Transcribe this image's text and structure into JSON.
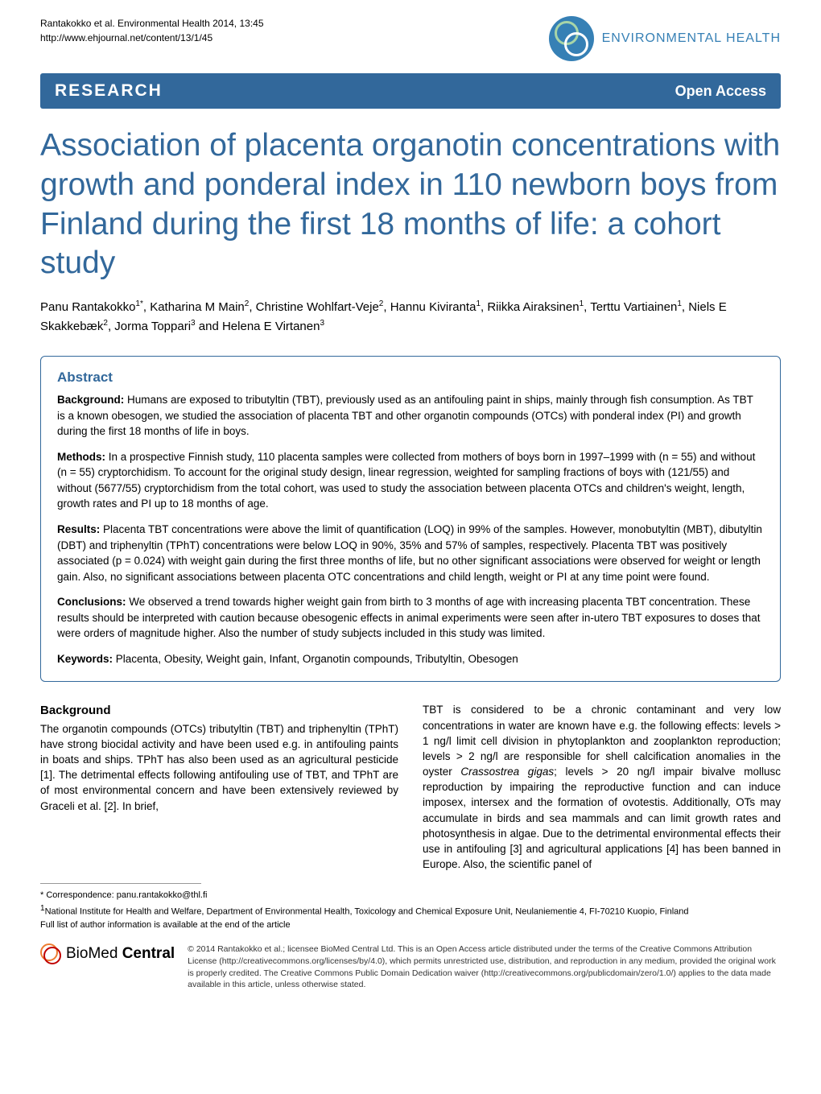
{
  "header": {
    "citation_line1": "Rantakokko et al. Environmental Health 2014, 13:45",
    "citation_line2": "http://www.ehjournal.net/content/13/1/45",
    "journal_name": "ENVIRONMENTAL HEALTH"
  },
  "bar": {
    "research": "RESEARCH",
    "open_access": "Open Access"
  },
  "title": "Association of placenta organotin concentrations with growth and ponderal index in 110 newborn boys from Finland during the first 18 months of life: a cohort study",
  "authors": {
    "html": "Panu Rantakokko<span class='sup'>1*</span>, Katharina M Main<span class='sup'>2</span>, Christine Wohlfart-Veje<span class='sup'>2</span>, Hannu Kiviranta<span class='sup'>1</span>, Riikka Airaksinen<span class='sup'>1</span>, Terttu Vartiainen<span class='sup'>1</span>, Niels E Skakkebæk<span class='sup'>2</span>, Jorma Toppari<span class='sup'>3</span> and Helena E Virtanen<span class='sup'>3</span>"
  },
  "abstract": {
    "heading": "Abstract",
    "background_label": "Background:",
    "background": " Humans are exposed to tributyltin (TBT), previously used as an antifouling paint in ships, mainly through fish consumption. As TBT is a known obesogen, we studied the association of placenta TBT and other organotin compounds (OTCs) with ponderal index (PI) and growth during the first 18 months of life in boys.",
    "methods_label": "Methods:",
    "methods": " In a prospective Finnish study, 110 placenta samples were collected from mothers of boys born in 1997–1999 with (n = 55) and without (n = 55) cryptorchidism. To account for the original study design, linear regression, weighted for sampling fractions of boys with (121/55) and without (5677/55) cryptorchidism from the total cohort, was used to study the association between placenta OTCs and children's weight, length, growth rates and PI up to 18 months of age.",
    "results_label": "Results:",
    "results": " Placenta TBT concentrations were above the limit of quantification (LOQ) in 99% of the samples. However, monobutyltin (MBT), dibutyltin (DBT) and triphenyltin (TPhT) concentrations were below LOQ in 90%, 35% and 57% of samples, respectively. Placenta TBT was positively associated (p = 0.024) with weight gain during the first three months of life, but no other significant associations were observed for weight or length gain. Also, no significant associations between placenta OTC concentrations and child length, weight or PI at any time point were found.",
    "conclusions_label": "Conclusions:",
    "conclusions": " We observed a trend towards higher weight gain from birth to 3 months of age with increasing placenta TBT concentration. These results should be interpreted with caution because obesogenic effects in animal experiments were seen after in-utero TBT exposures to doses that were orders of magnitude higher. Also the number of study subjects included in this study was limited.",
    "keywords_label": "Keywords:",
    "keywords": " Placenta, Obesity, Weight gain, Infant, Organotin compounds, Tributyltin, Obesogen"
  },
  "body": {
    "background_heading": "Background",
    "col1": "The organotin compounds (OTCs) tributyltin (TBT) and triphenyltin (TPhT) have strong biocidal activity and have been used e.g. in antifouling paints in boats and ships. TPhT has also been used as an agricultural pesticide [1]. The detrimental effects following antifouling use of TBT, and TPhT are of most environmental concern and have been extensively reviewed by Graceli et al. [2]. In brief,",
    "col2_html": "TBT is considered to be a chronic contaminant and very low concentrations in water are known have e.g. the following effects: levels > 1 ng/l limit cell division in phytoplankton and zooplankton reproduction; levels > 2 ng/l are responsible for shell calcification anomalies in the oyster <span class='italic'>Crassostrea gigas</span>; levels > 20 ng/l impair bivalve mollusc reproduction by impairing the reproductive function and can induce imposex, intersex and the formation of ovotestis. Additionally, OTs may accumulate in birds and sea mammals and can limit growth rates and photosynthesis in algae. Due to the detrimental environmental effects their use in antifouling [3] and agricultural applications [4] has been banned in Europe. Also, the scientific panel of"
  },
  "correspondence": {
    "line1": "* Correspondence: panu.rantakokko@thl.fi",
    "line2_html": "<span class='sup'>1</span>National Institute for Health and Welfare, Department of Environmental Health, Toxicology and Chemical Exposure Unit, Neulaniementie 4, FI-70210 Kuopio, Finland",
    "line3": "Full list of author information is available at the end of the article"
  },
  "bmc": {
    "logo_text": "BioMed Central",
    "license": "© 2014 Rantakokko et al.; licensee BioMed Central Ltd. This is an Open Access article distributed under the terms of the Creative Commons Attribution License (http://creativecommons.org/licenses/by/4.0), which permits unrestricted use, distribution, and reproduction in any medium, provided the original work is properly credited. The Creative Commons Public Domain Dedication waiver (http://creativecommons.org/publicdomain/zero/1.0/) applies to the data made available in this article, unless otherwise stated."
  },
  "colors": {
    "primary_blue": "#32689b",
    "journal_blue": "#3680b5",
    "text": "#000000"
  }
}
